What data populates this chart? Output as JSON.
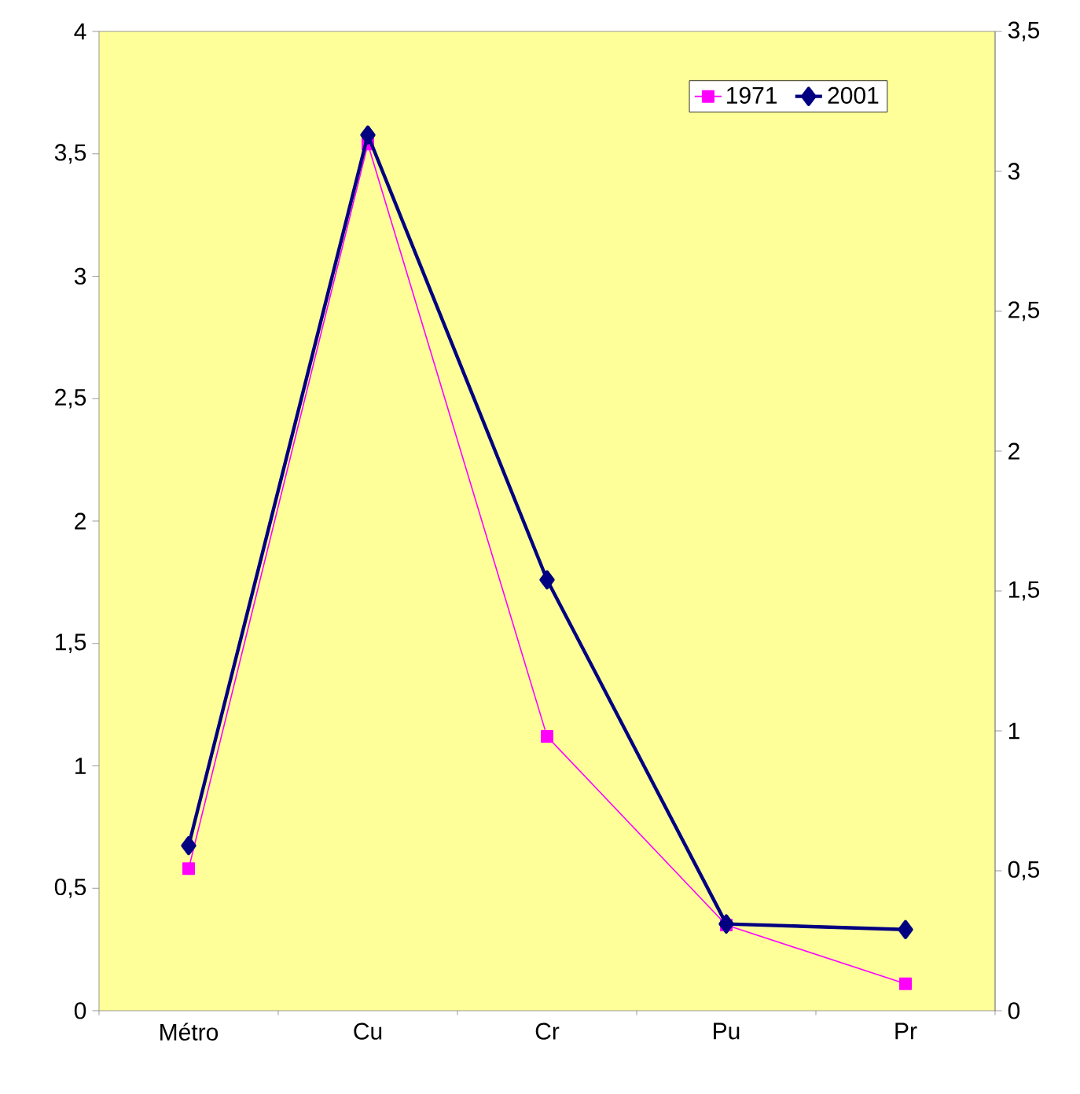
{
  "chart_data": {
    "type": "line",
    "categories": [
      "Métro",
      "Cu",
      "Cr",
      "Pu",
      "Pr"
    ],
    "series": [
      {
        "name": "1971",
        "color": "#ff00ff",
        "marker": "square",
        "values": [
          0.58,
          3.54,
          1.12,
          0.35,
          0.11
        ]
      },
      {
        "name": "2001",
        "color": "#000080",
        "marker": "diamond",
        "axis": "y2",
        "values": [
          0.59,
          3.13,
          1.54,
          0.31,
          0.29
        ]
      }
    ],
    "ylim": [
      0,
      4
    ],
    "yticks": [
      0,
      {
        "value": 0.5,
        "label": "0,5"
      },
      1,
      {
        "value": 1.5,
        "label": "1,5"
      },
      2,
      {
        "value": 2.5,
        "label": "2,5"
      },
      3,
      {
        "value": 3.5,
        "label": "3,5"
      },
      4
    ],
    "y2lim": [
      0,
      3.5
    ],
    "y2ticks": [
      0,
      {
        "value": 0.5,
        "label": "0,5"
      },
      1,
      {
        "value": 1.5,
        "label": "1,5"
      },
      2,
      {
        "value": 2.5,
        "label": "2,5"
      },
      3,
      {
        "value": 3.5,
        "label": "3,5"
      }
    ],
    "legend": "top right",
    "grid": false
  }
}
